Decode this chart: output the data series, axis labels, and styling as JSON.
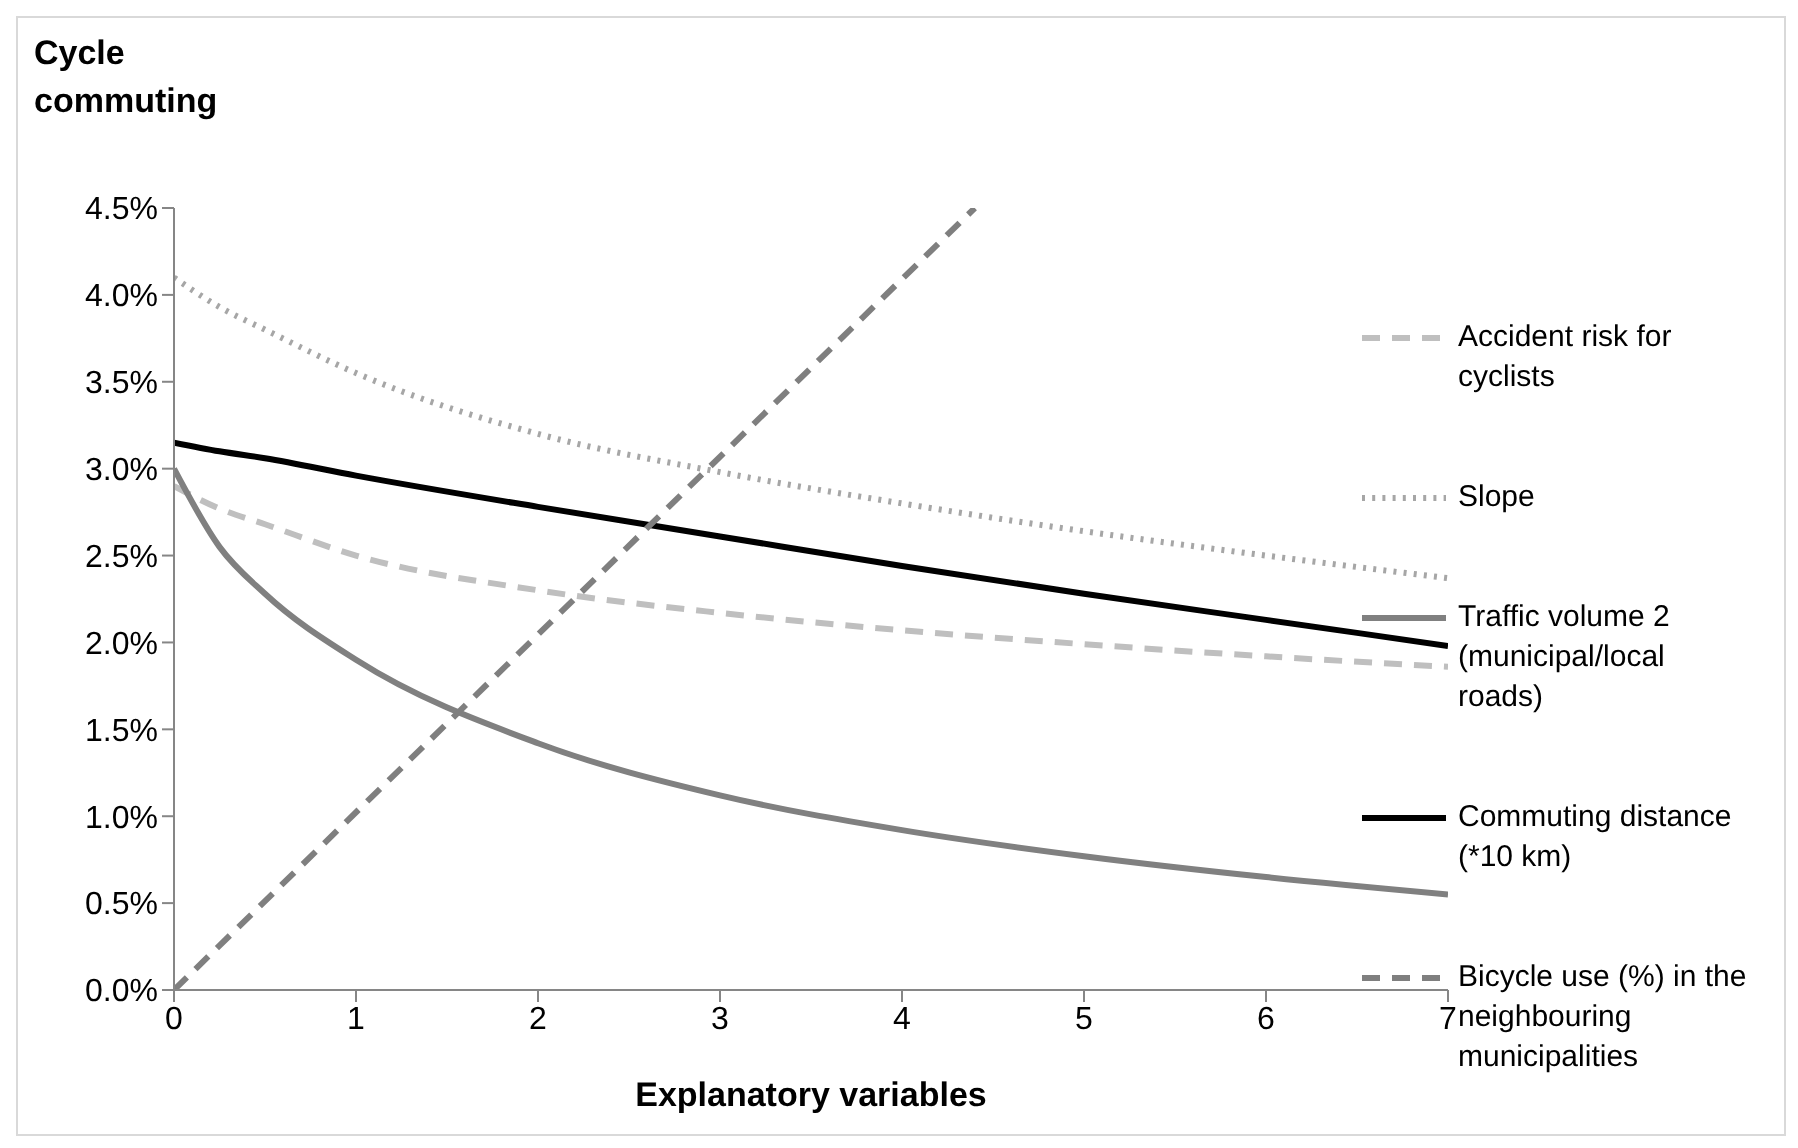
{
  "chart_data": {
    "type": "line",
    "title": "Cycle commuting",
    "xlabel": "Explanatory variables",
    "x": [
      0,
      0.25,
      0.5,
      1,
      2,
      3,
      4,
      5,
      6,
      7
    ],
    "series": [
      {
        "name": "Accident risk for cyclists",
        "color": "#bfbfbf",
        "line_style": "dashed",
        "values": [
          2.9,
          2.77,
          2.68,
          2.5,
          2.3,
          2.17,
          2.07,
          1.99,
          1.92,
          1.86
        ]
      },
      {
        "name": "Slope",
        "color": "#a6a6a6",
        "line_style": "dotted",
        "values": [
          4.1,
          3.93,
          3.8,
          3.55,
          3.2,
          2.98,
          2.8,
          2.64,
          2.5,
          2.37
        ]
      },
      {
        "name": "Traffic volume 2 (municipal/local roads)",
        "color": "#808080",
        "line_style": "solid",
        "values": [
          3.0,
          2.55,
          2.28,
          1.9,
          1.42,
          1.12,
          0.92,
          0.77,
          0.65,
          0.55
        ]
      },
      {
        "name": "Commuting distance (*10 km)",
        "color": "#000000",
        "line_style": "solid",
        "values": [
          3.15,
          3.1,
          3.06,
          2.96,
          2.78,
          2.61,
          2.44,
          2.28,
          2.13,
          1.98
        ]
      },
      {
        "name": "Bicycle use (%) in the neighbouring municipalities",
        "color": "#7f7f7f",
        "line_style": "dashed",
        "x": [
          0,
          4.4
        ],
        "values": [
          0,
          4.5
        ]
      }
    ],
    "xlim": [
      0,
      7
    ],
    "xticks": [
      0,
      1,
      2,
      3,
      4,
      5,
      6,
      7
    ],
    "ylim": [
      0,
      4.5
    ],
    "yticks": [
      {
        "value": 0,
        "label": "0.0%"
      },
      {
        "value": 0.5,
        "label": "0.5%"
      },
      {
        "value": 1,
        "label": "1.0%"
      },
      {
        "value": 1.5,
        "label": "1.5%"
      },
      {
        "value": 2,
        "label": "2.0%"
      },
      {
        "value": 2.5,
        "label": "2.5%"
      },
      {
        "value": 3,
        "label": "3.0%"
      },
      {
        "value": 3.5,
        "label": "3.5%"
      },
      {
        "value": 4,
        "label": "4.0%"
      },
      {
        "value": 4.5,
        "label": "4.5%"
      }
    ],
    "grid": false,
    "legend": "right",
    "marker": "none"
  }
}
